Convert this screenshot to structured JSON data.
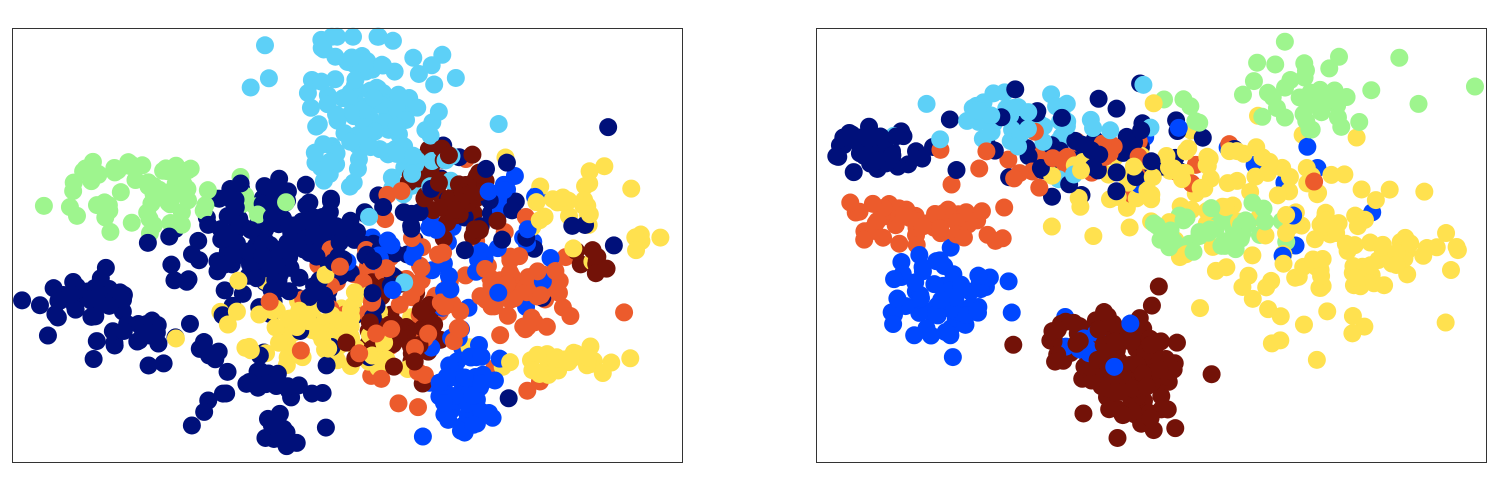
{
  "chart_data": [
    {
      "type": "scatter",
      "axes_visible": false,
      "xlim": [
        0,
        100
      ],
      "ylim": [
        0,
        100
      ],
      "marker": "filled-circle",
      "colormap": "jet",
      "clusters": [
        {
          "color": "#5dd0f7",
          "cx": 52,
          "cy": 80,
          "sx": 5,
          "sy": 11,
          "n": 110
        },
        {
          "color": "#5dd0f7",
          "cx": 58,
          "cy": 72,
          "sx": 6,
          "sy": 5,
          "n": 35
        },
        {
          "color": "#9ef58e",
          "cx": 20,
          "cy": 62,
          "sx": 7,
          "sy": 4,
          "n": 70
        },
        {
          "color": "#00107a",
          "cx": 40,
          "cy": 50,
          "sx": 8,
          "sy": 8,
          "n": 200
        },
        {
          "color": "#00107a",
          "cx": 10,
          "cy": 38,
          "sx": 4,
          "sy": 3,
          "n": 40
        },
        {
          "color": "#00107a",
          "cx": 18,
          "cy": 31,
          "sx": 3,
          "sy": 2,
          "n": 18
        },
        {
          "color": "#00107a",
          "cx": 36,
          "cy": 20,
          "sx": 8,
          "sy": 5,
          "n": 40
        },
        {
          "color": "#00107a",
          "cx": 40,
          "cy": 7,
          "sx": 2,
          "sy": 1.5,
          "n": 10
        },
        {
          "color": "#00107a",
          "cx": 70,
          "cy": 58,
          "sx": 10,
          "sy": 8,
          "n": 35
        },
        {
          "color": "#ffe14f",
          "cx": 46,
          "cy": 31,
          "sx": 7,
          "sy": 5,
          "n": 80
        },
        {
          "color": "#ffe14f",
          "cx": 83,
          "cy": 23,
          "sx": 4,
          "sy": 2,
          "n": 30
        },
        {
          "color": "#ffe14f",
          "cx": 83,
          "cy": 57,
          "sx": 3,
          "sy": 5,
          "n": 25
        },
        {
          "color": "#ffe14f",
          "cx": 93,
          "cy": 52,
          "sx": 1.5,
          "sy": 1.2,
          "n": 5
        },
        {
          "color": "#ec5b2c",
          "cx": 62,
          "cy": 36,
          "sx": 10,
          "sy": 10,
          "n": 90
        },
        {
          "color": "#ec5b2c",
          "cx": 77,
          "cy": 40,
          "sx": 3,
          "sy": 5,
          "n": 40
        },
        {
          "color": "#731208",
          "cx": 58,
          "cy": 32,
          "sx": 4,
          "sy": 5,
          "n": 60
        },
        {
          "color": "#731208",
          "cx": 66,
          "cy": 62,
          "sx": 3,
          "sy": 6,
          "n": 60
        },
        {
          "color": "#731208",
          "cx": 85,
          "cy": 46,
          "sx": 2,
          "sy": 1.5,
          "n": 8
        },
        {
          "color": "#0047ff",
          "cx": 67,
          "cy": 18,
          "sx": 3,
          "sy": 6,
          "n": 50
        },
        {
          "color": "#0047ff",
          "cx": 62,
          "cy": 48,
          "sx": 8,
          "sy": 6,
          "n": 40
        },
        {
          "color": "#0047ff",
          "cx": 75,
          "cy": 62,
          "sx": 2,
          "sy": 2,
          "n": 10
        }
      ]
    },
    {
      "type": "scatter",
      "axes_visible": false,
      "xlim": [
        0,
        100
      ],
      "ylim": [
        0,
        100
      ],
      "marker": "filled-circle",
      "colormap": "jet",
      "clusters": [
        {
          "color": "#00107a",
          "cx": 8,
          "cy": 72,
          "sx": 4,
          "sy": 3,
          "n": 40
        },
        {
          "color": "#00107a",
          "cx": 40,
          "cy": 72,
          "sx": 9,
          "sy": 5,
          "n": 60
        },
        {
          "color": "#ec5b2c",
          "cx": 15,
          "cy": 55,
          "sx": 6,
          "sy": 2.5,
          "n": 55
        },
        {
          "color": "#ec5b2c",
          "cx": 40,
          "cy": 70,
          "sx": 10,
          "sy": 4,
          "n": 40
        },
        {
          "color": "#0047ff",
          "cx": 19,
          "cy": 37,
          "sx": 5,
          "sy": 5,
          "n": 60
        },
        {
          "color": "#9ef58e",
          "cx": 60,
          "cy": 54,
          "sx": 5,
          "sy": 2.5,
          "n": 45
        },
        {
          "color": "#9ef58e",
          "cx": 71,
          "cy": 85,
          "sx": 10,
          "sy": 5,
          "n": 45
        },
        {
          "color": "#5dd0f7",
          "cx": 32,
          "cy": 78,
          "sx": 7,
          "sy": 4,
          "n": 45
        },
        {
          "color": "#ffe14f",
          "cx": 54,
          "cy": 65,
          "sx": 10,
          "sy": 7,
          "n": 70
        },
        {
          "color": "#ffe14f",
          "cx": 76,
          "cy": 50,
          "sx": 8,
          "sy": 9,
          "n": 100
        },
        {
          "color": "#ffe14f",
          "cx": 90,
          "cy": 48,
          "sx": 4,
          "sy": 2.5,
          "n": 20
        },
        {
          "color": "#731208",
          "cx": 47,
          "cy": 20,
          "sx": 3.5,
          "sy": 7,
          "n": 130
        },
        {
          "color": "#731208",
          "cx": 42,
          "cy": 28,
          "sx": 5,
          "sy": 3,
          "n": 40
        },
        {
          "color": "#0047ff",
          "cx": 43,
          "cy": 25,
          "sx": 3,
          "sy": 3,
          "n": 15
        },
        {
          "color": "#0047ff",
          "cx": 62,
          "cy": 62,
          "sx": 10,
          "sy": 8,
          "n": 12
        }
      ]
    }
  ]
}
